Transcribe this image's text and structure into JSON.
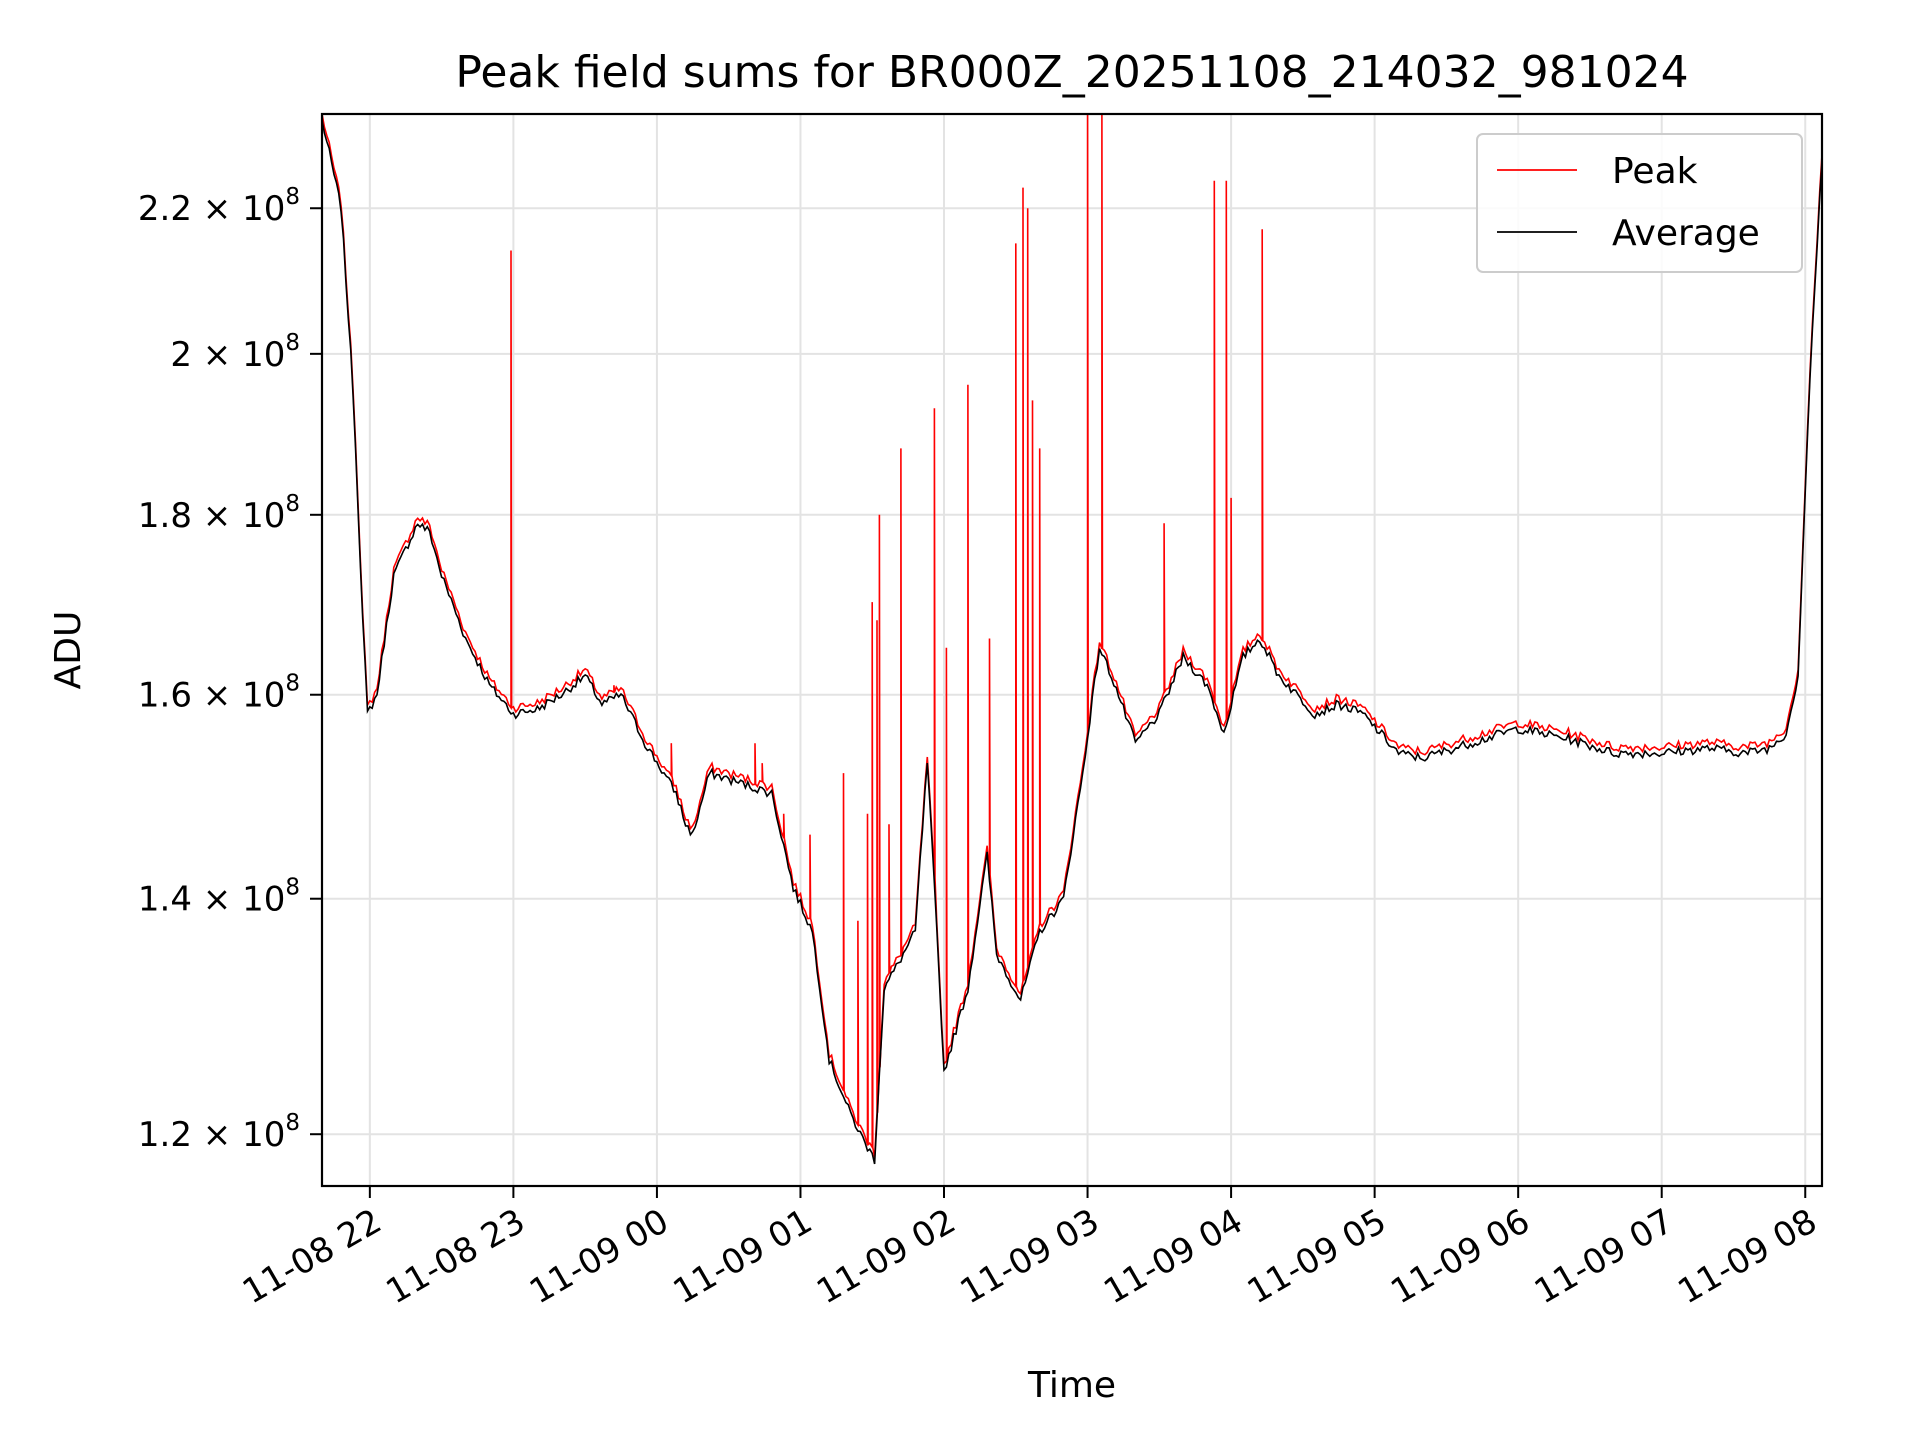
{
  "chart_data": {
    "type": "line",
    "title": "Peak field sums for BR000Z_20251108_214032_981024",
    "xlabel": "Time",
    "ylabel": "ADU",
    "y_scale": "log",
    "xlim": [
      "2025-11-08 21:40",
      "2025-11-09 08:07"
    ],
    "ylim": [
      116000000,
      234000000
    ],
    "grid": true,
    "legend_position": "top-right",
    "x_ticks": [
      "11-08 22",
      "11-08 23",
      "11-09 00",
      "11-09 01",
      "11-09 02",
      "11-09 03",
      "11-09 04",
      "11-09 05",
      "11-09 06",
      "11-09 07",
      "11-09 08"
    ],
    "x_tick_times": [
      "2025-11-08 22:00",
      "2025-11-08 23:00",
      "2025-11-09 00:00",
      "2025-11-09 01:00",
      "2025-11-09 02:00",
      "2025-11-09 03:00",
      "2025-11-09 04:00",
      "2025-11-09 05:00",
      "2025-11-09 06:00",
      "2025-11-09 07:00",
      "2025-11-09 08:00"
    ],
    "y_ticks": [
      {
        "value": 120000000,
        "mantissa": "1.2",
        "exponent": "8"
      },
      {
        "value": 140000000,
        "mantissa": "1.4",
        "exponent": "8"
      },
      {
        "value": 160000000,
        "mantissa": "1.6",
        "exponent": "8"
      },
      {
        "value": 180000000,
        "mantissa": "1.8",
        "exponent": "8"
      },
      {
        "value": 200000000,
        "mantissa": "2",
        "exponent": "8"
      },
      {
        "value": 220000000,
        "mantissa": "2.2",
        "exponent": "8"
      }
    ],
    "series": [
      {
        "name": "Average",
        "color": "#000000",
        "x": [
          "2025-11-08 21:40",
          "2025-11-08 21:48",
          "2025-11-08 21:53",
          "2025-11-08 21:57",
          "2025-11-08 21:59",
          "2025-11-08 22:03",
          "2025-11-08 22:10",
          "2025-11-08 22:20",
          "2025-11-08 22:25",
          "2025-11-08 22:30",
          "2025-11-08 22:40",
          "2025-11-08 22:50",
          "2025-11-08 23:00",
          "2025-11-08 23:10",
          "2025-11-08 23:20",
          "2025-11-08 23:30",
          "2025-11-08 23:37",
          "2025-11-08 23:45",
          "2025-11-08 23:55",
          "2025-11-09 00:08",
          "2025-11-09 00:12",
          "2025-11-09 00:15",
          "2025-11-09 00:22",
          "2025-11-09 00:35",
          "2025-11-09 00:48",
          "2025-11-09 00:57",
          "2025-11-09 01:05",
          "2025-11-09 01:12",
          "2025-11-09 01:20",
          "2025-11-09 01:25",
          "2025-11-09 01:31",
          "2025-11-09 01:35",
          "2025-11-09 01:43",
          "2025-11-09 01:48",
          "2025-11-09 01:53",
          "2025-11-09 02:00",
          "2025-11-09 02:10",
          "2025-11-09 02:18",
          "2025-11-09 02:22",
          "2025-11-09 02:32",
          "2025-11-09 02:40",
          "2025-11-09 02:50",
          "2025-11-09 02:58",
          "2025-11-09 03:05",
          "2025-11-09 03:10",
          "2025-11-09 03:20",
          "2025-11-09 03:30",
          "2025-11-09 03:40",
          "2025-11-09 03:50",
          "2025-11-09 03:57",
          "2025-11-09 04:05",
          "2025-11-09 04:12",
          "2025-11-09 04:20",
          "2025-11-09 04:35",
          "2025-11-09 04:45",
          "2025-11-09 04:55",
          "2025-11-09 05:10",
          "2025-11-09 05:20",
          "2025-11-09 05:40",
          "2025-11-09 06:00",
          "2025-11-09 06:20",
          "2025-11-09 06:40",
          "2025-11-09 07:00",
          "2025-11-09 07:20",
          "2025-11-09 07:35",
          "2025-11-09 07:45",
          "2025-11-09 07:52",
          "2025-11-09 07:57",
          "2025-11-09 08:02",
          "2025-11-09 08:07"
        ],
        "values": [
          233000000,
          220000000,
          195000000,
          168000000,
          158000000,
          160000000,
          173000000,
          179000000,
          178000000,
          173000000,
          166000000,
          161000000,
          158000000,
          158500000,
          160000000,
          162000000,
          159000000,
          160000000,
          155000000,
          150000000,
          147000000,
          146000000,
          152000000,
          151000000,
          150000000,
          141000000,
          137000000,
          126000000,
          122000000,
          120000000,
          118000000,
          132000000,
          135000000,
          137000000,
          153000000,
          125000000,
          132000000,
          144000000,
          135000000,
          131000000,
          137000000,
          140000000,
          152000000,
          165000000,
          162000000,
          155000000,
          158000000,
          164000000,
          161000000,
          156000000,
          164000000,
          166000000,
          162000000,
          158000000,
          159000000,
          158000000,
          154000000,
          153500000,
          155000000,
          156500000,
          155500000,
          154000000,
          154000000,
          154500000,
          154000000,
          154500000,
          156000000,
          162000000,
          197000000,
          227000000
        ]
      },
      {
        "name": "Peak",
        "color": "#ff0000",
        "spikes_x": [
          "2025-11-08 22:59",
          "2025-11-08 23:42",
          "2025-11-09 00:06",
          "2025-11-09 00:41",
          "2025-11-09 00:44",
          "2025-11-09 00:53",
          "2025-11-09 01:04",
          "2025-11-09 01:18",
          "2025-11-09 01:24",
          "2025-11-09 01:28",
          "2025-11-09 01:30",
          "2025-11-09 01:32",
          "2025-11-09 01:33",
          "2025-11-09 01:37",
          "2025-11-09 01:42",
          "2025-11-09 01:56",
          "2025-11-09 02:01",
          "2025-11-09 02:10",
          "2025-11-09 02:19",
          "2025-11-09 02:30",
          "2025-11-09 02:33",
          "2025-11-09 02:35",
          "2025-11-09 02:37",
          "2025-11-09 02:40",
          "2025-11-09 03:00",
          "2025-11-09 03:06",
          "2025-11-09 03:32",
          "2025-11-09 03:53",
          "2025-11-09 03:58",
          "2025-11-09 04:00",
          "2025-11-09 04:13"
        ],
        "spikes_values": [
          214000000,
          161000000,
          155000000,
          155000000,
          153000000,
          148000000,
          146000000,
          152000000,
          138000000,
          148000000,
          170000000,
          168000000,
          180000000,
          147000000,
          188000000,
          193000000,
          165000000,
          196000000,
          166000000,
          215000000,
          223000000,
          220000000,
          194000000,
          188000000,
          234000000,
          234000000,
          179000000,
          224000000,
          224000000,
          182000000,
          217000000
        ]
      }
    ]
  },
  "legend": [
    {
      "label": "Peak",
      "color": "#ff0000"
    },
    {
      "label": "Average",
      "color": "#000000"
    }
  ]
}
